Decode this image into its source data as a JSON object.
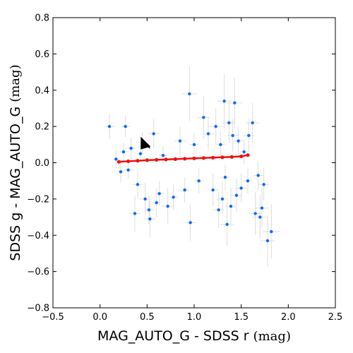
{
  "chart_data": {
    "type": "scatter",
    "xlabel": "MAG_AUTO_G  -  SDSS r",
    "xlabel_unit": "(mag)",
    "ylabel": "SDSS g  -  MAG_AUTO_G",
    "ylabel_unit": "(mag)",
    "xlim": [
      -0.5,
      2.5
    ],
    "ylim": [
      -0.8,
      0.8
    ],
    "xticks": [
      "−0.5",
      "0.0",
      "0.5",
      "1.0",
      "1.5",
      "2.0",
      "2.5"
    ],
    "xtick_values": [
      -0.5,
      0.0,
      0.5,
      1.0,
      1.5,
      2.0,
      2.5
    ],
    "yticks": [
      "0.8",
      "0.6",
      "0.4",
      "0.2",
      "0.0",
      "−0.2",
      "−0.4",
      "−0.6",
      "−0.8"
    ],
    "ytick_values": [
      0.8,
      0.6,
      0.4,
      0.2,
      0.0,
      -0.2,
      -0.4,
      -0.6,
      -0.8
    ],
    "grid": false,
    "colors": {
      "points": "#0a6cf5",
      "errorbars": "#dddddd",
      "fit": "#ee1111",
      "arrow": "#000000"
    },
    "series": [
      {
        "kind": "blue-scatter-with-errorbars",
        "points": [
          {
            "x": 0.1,
            "y": 0.2,
            "ex": 0.05,
            "ey": 0.07
          },
          {
            "x": 0.17,
            "y": 0.02,
            "ex": 0.04,
            "ey": 0.05
          },
          {
            "x": 0.22,
            "y": -0.05,
            "ex": 0.04,
            "ey": 0.06
          },
          {
            "x": 0.25,
            "y": 0.06,
            "ex": 0.05,
            "ey": 0.05
          },
          {
            "x": 0.27,
            "y": 0.2,
            "ex": 0.05,
            "ey": 0.06
          },
          {
            "x": 0.3,
            "y": -0.04,
            "ex": 0.05,
            "ey": 0.05
          },
          {
            "x": 0.33,
            "y": 0.08,
            "ex": 0.05,
            "ey": 0.06
          },
          {
            "x": 0.37,
            "y": -0.28,
            "ex": 0.06,
            "ey": 0.1
          },
          {
            "x": 0.4,
            "y": -0.12,
            "ex": 0.05,
            "ey": 0.08
          },
          {
            "x": 0.43,
            "y": 0.05,
            "ex": 0.04,
            "ey": 0.05
          },
          {
            "x": 0.45,
            "y": 0.11,
            "ex": 0.04,
            "ey": 0.06
          },
          {
            "x": 0.48,
            "y": -0.2,
            "ex": 0.06,
            "ey": 0.09
          },
          {
            "x": 0.52,
            "y": -0.26,
            "ex": 0.05,
            "ey": 0.08
          },
          {
            "x": 0.53,
            "y": -0.31,
            "ex": 0.06,
            "ey": 0.1
          },
          {
            "x": 0.57,
            "y": 0.16,
            "ex": 0.06,
            "ey": 0.08
          },
          {
            "x": 0.6,
            "y": -0.22,
            "ex": 0.05,
            "ey": 0.08
          },
          {
            "x": 0.63,
            "y": -0.17,
            "ex": 0.05,
            "ey": 0.07
          },
          {
            "x": 0.67,
            "y": 0.04,
            "ex": 0.04,
            "ey": 0.05
          },
          {
            "x": 0.72,
            "y": -0.24,
            "ex": 0.07,
            "ey": 0.1
          },
          {
            "x": 0.78,
            "y": -0.19,
            "ex": 0.05,
            "ey": 0.07
          },
          {
            "x": 0.85,
            "y": 0.12,
            "ex": 0.06,
            "ey": 0.08
          },
          {
            "x": 0.9,
            "y": -0.15,
            "ex": 0.05,
            "ey": 0.07
          },
          {
            "x": 0.95,
            "y": 0.38,
            "ex": 0.08,
            "ey": 0.15
          },
          {
            "x": 0.96,
            "y": -0.33,
            "ex": 0.06,
            "ey": 0.1
          },
          {
            "x": 1.0,
            "y": 0.1,
            "ex": 0.05,
            "ey": 0.06
          },
          {
            "x": 1.05,
            "y": -0.1,
            "ex": 0.05,
            "ey": 0.07
          },
          {
            "x": 1.1,
            "y": 0.25,
            "ex": 0.07,
            "ey": 0.12
          },
          {
            "x": 1.15,
            "y": 0.16,
            "ex": 0.06,
            "ey": 0.09
          },
          {
            "x": 1.2,
            "y": -0.15,
            "ex": 0.06,
            "ey": 0.09
          },
          {
            "x": 1.23,
            "y": 0.2,
            "ex": 0.07,
            "ey": 0.1
          },
          {
            "x": 1.26,
            "y": -0.26,
            "ex": 0.06,
            "ey": 0.1
          },
          {
            "x": 1.28,
            "y": 0.1,
            "ex": 0.05,
            "ey": 0.07
          },
          {
            "x": 1.3,
            "y": -0.2,
            "ex": 0.06,
            "ey": 0.09
          },
          {
            "x": 1.32,
            "y": 0.34,
            "ex": 0.08,
            "ey": 0.15
          },
          {
            "x": 1.33,
            "y": -0.08,
            "ex": 0.05,
            "ey": 0.07
          },
          {
            "x": 1.35,
            "y": -0.34,
            "ex": 0.07,
            "ey": 0.12
          },
          {
            "x": 1.37,
            "y": 0.22,
            "ex": 0.07,
            "ey": 0.11
          },
          {
            "x": 1.39,
            "y": -0.24,
            "ex": 0.06,
            "ey": 0.1
          },
          {
            "x": 1.41,
            "y": 0.15,
            "ex": 0.06,
            "ey": 0.09
          },
          {
            "x": 1.43,
            "y": 0.33,
            "ex": 0.08,
            "ey": 0.14
          },
          {
            "x": 1.45,
            "y": -0.18,
            "ex": 0.06,
            "ey": 0.09
          },
          {
            "x": 1.47,
            "y": 0.12,
            "ex": 0.05,
            "ey": 0.08
          },
          {
            "x": 1.5,
            "y": -0.14,
            "ex": 0.06,
            "ey": 0.08
          },
          {
            "x": 1.53,
            "y": 0.06,
            "ex": 0.05,
            "ey": 0.07
          },
          {
            "x": 1.57,
            "y": -0.1,
            "ex": 0.05,
            "ey": 0.07
          },
          {
            "x": 1.58,
            "y": 0.15,
            "ex": 0.06,
            "ey": 0.09
          },
          {
            "x": 1.62,
            "y": 0.22,
            "ex": 0.07,
            "ey": 0.11
          },
          {
            "x": 1.65,
            "y": -0.28,
            "ex": 0.07,
            "ey": 0.12
          },
          {
            "x": 1.68,
            "y": -0.07,
            "ex": 0.05,
            "ey": 0.08
          },
          {
            "x": 1.7,
            "y": -0.3,
            "ex": 0.08,
            "ey": 0.12
          },
          {
            "x": 1.72,
            "y": -0.25,
            "ex": 0.07,
            "ey": 0.11
          },
          {
            "x": 1.74,
            "y": -0.12,
            "ex": 0.06,
            "ey": 0.09
          },
          {
            "x": 1.78,
            "y": -0.43,
            "ex": 0.08,
            "ey": 0.14
          },
          {
            "x": 1.82,
            "y": -0.38,
            "ex": 0.09,
            "ey": 0.15
          }
        ]
      },
      {
        "kind": "red-fit-line",
        "x": [
          0.2,
          0.3,
          0.4,
          0.5,
          0.6,
          0.7,
          0.8,
          0.9,
          1.0,
          1.1,
          1.2,
          1.3,
          1.4,
          1.5,
          1.57
        ],
        "y": [
          0.005,
          0.008,
          0.011,
          0.014,
          0.016,
          0.018,
          0.02,
          0.022,
          0.024,
          0.026,
          0.028,
          0.03,
          0.032,
          0.035,
          0.042
        ]
      }
    ],
    "annotation_arrow": {
      "x": 0.44,
      "y": 0.12,
      "tip_x": 0.53,
      "tip_y": 0.08
    }
  }
}
